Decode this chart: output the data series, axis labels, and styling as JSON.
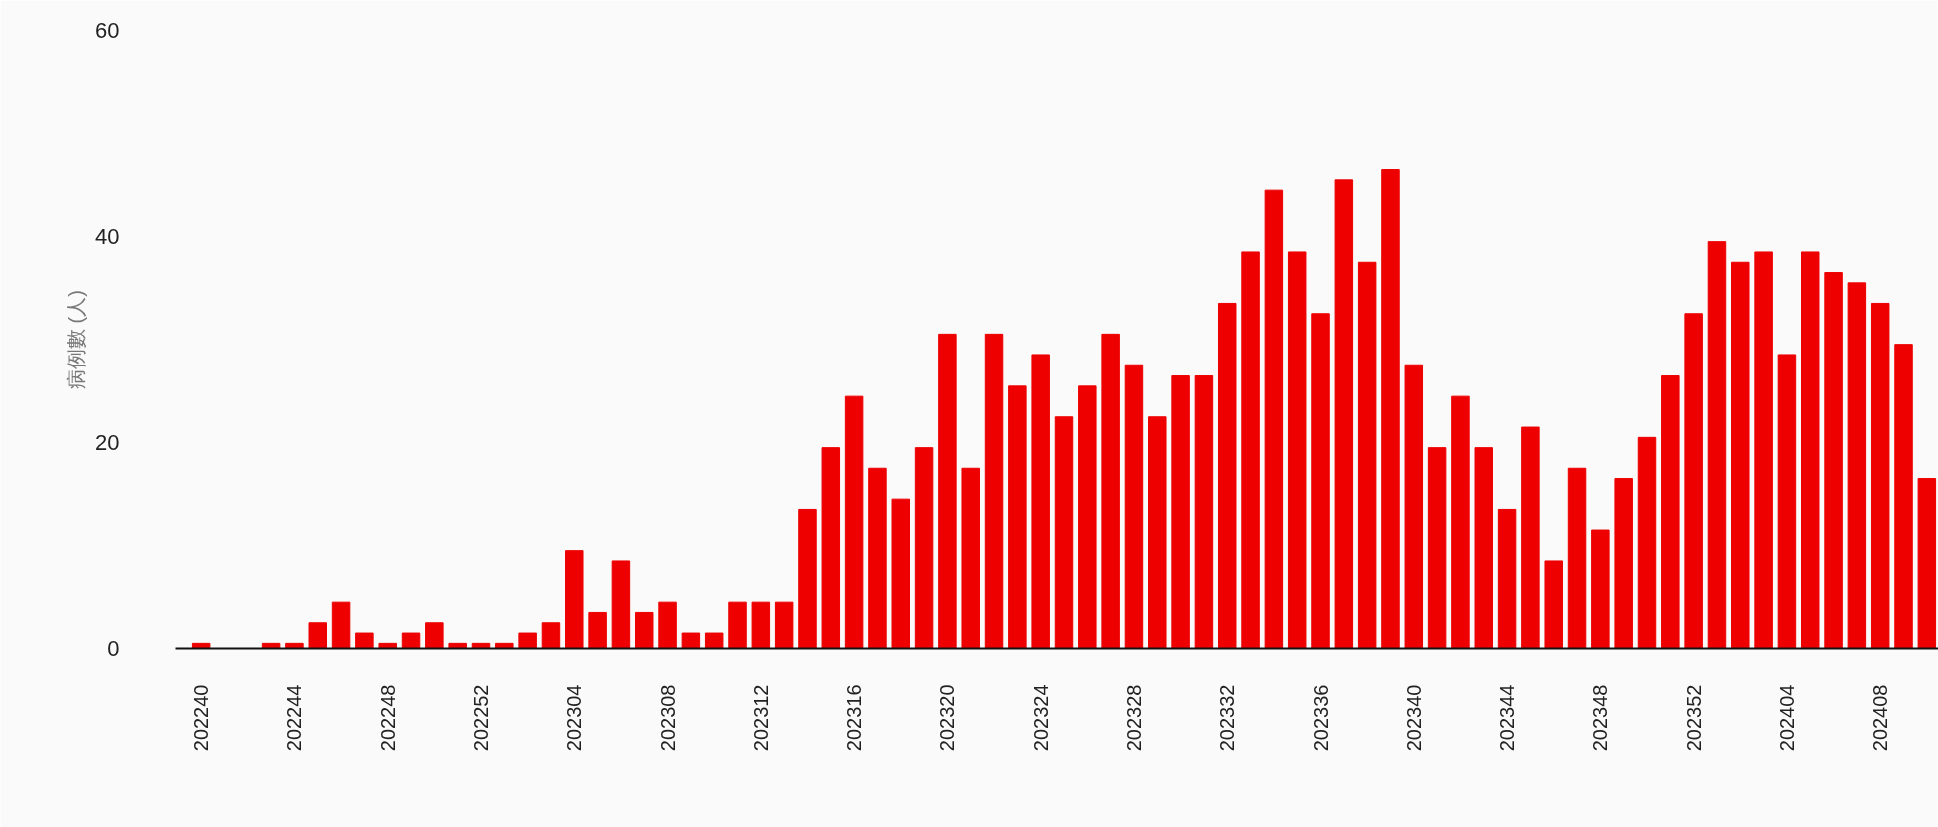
{
  "chart_data": {
    "type": "bar",
    "ylabel": "病例數 (人)",
    "categories": [
      "202240",
      null,
      null,
      null,
      "202244",
      null,
      null,
      null,
      "202248",
      null,
      null,
      null,
      "202252",
      null,
      null,
      null,
      "202304",
      null,
      null,
      null,
      "202308",
      null,
      null,
      null,
      "202312",
      null,
      null,
      null,
      "202316",
      null,
      null,
      null,
      "202320",
      null,
      null,
      null,
      "202324",
      null,
      null,
      null,
      "202328",
      null,
      null,
      null,
      "202332",
      null,
      null,
      null,
      "202336",
      null,
      null,
      null,
      "202340",
      null,
      null,
      null,
      "202344",
      null,
      null,
      null,
      "202348",
      null,
      null,
      null,
      "202352",
      null,
      null,
      null,
      "202404",
      null,
      null,
      null,
      "202408",
      null,
      null
    ],
    "values": [
      0.5,
      0,
      0,
      0.5,
      0.5,
      2.5,
      4.5,
      1.5,
      0.5,
      1.5,
      2.5,
      0.5,
      0.5,
      0.5,
      1.5,
      2.5,
      9.5,
      3.5,
      8.5,
      3.5,
      4.5,
      1.5,
      1.5,
      4.5,
      4.5,
      4.5,
      13.5,
      19.5,
      24.5,
      17.5,
      14.5,
      19.5,
      30.5,
      17.5,
      30.5,
      25.5,
      28.5,
      22.5,
      25.5,
      30.5,
      27.5,
      22.5,
      26.5,
      26.5,
      33.5,
      38.5,
      44.5,
      38.5,
      32.5,
      45.5,
      37.5,
      46.5,
      27.5,
      19.5,
      24.5,
      19.5,
      13.5,
      21.5,
      8.5,
      17.5,
      11.5,
      16.5,
      20.5,
      26.5,
      32.5,
      39.5,
      37.5,
      38.5,
      28.5,
      38.5,
      36.5,
      35.5,
      33.5,
      29.5,
      16.5
    ],
    "color": "#ee0000",
    "ylim": [
      0,
      60
    ],
    "yticks": [
      0,
      20,
      40,
      60
    ]
  }
}
